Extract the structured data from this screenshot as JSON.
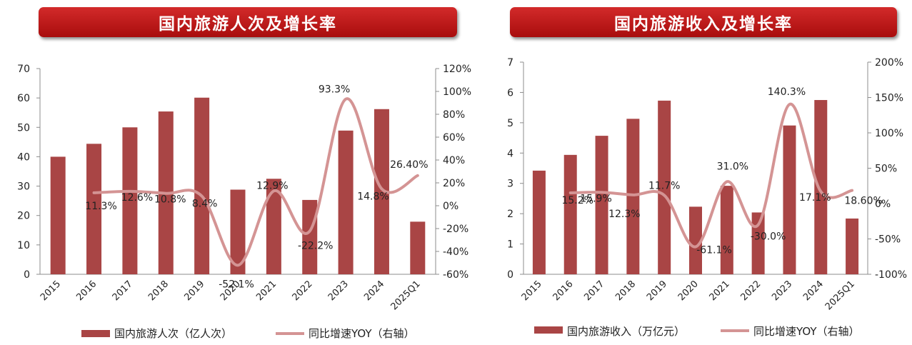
{
  "colors": {
    "bar": "#a94545",
    "line": "#d49494",
    "title_bg": "#c01b1b",
    "axis": "#8c8c8c",
    "text": "#222222"
  },
  "chart_data": [
    {
      "type": "bar",
      "title": "国内旅游人次及增长率",
      "categories": [
        "2015",
        "2016",
        "2017",
        "2018",
        "2019",
        "2020",
        "2021",
        "2022",
        "2023",
        "2024",
        "2025Q1"
      ],
      "ylim": [
        0,
        70
      ],
      "y_ticks": [
        "0",
        "10",
        "20",
        "30",
        "40",
        "50",
        "60",
        "70"
      ],
      "y2lim": [
        -60,
        120
      ],
      "y2_ticks": [
        "-60%",
        "-40%",
        "-20%",
        "0%",
        "20%",
        "40%",
        "60%",
        "80%",
        "100%",
        "120%"
      ],
      "series": [
        {
          "name": "国内旅游人次（亿人次）",
          "type": "bar",
          "axis": "left",
          "values": [
            40.0,
            44.4,
            50.0,
            55.4,
            60.1,
            28.8,
            32.5,
            25.3,
            48.9,
            56.2,
            17.9
          ]
        },
        {
          "name": "同比增速YOY（右轴）",
          "type": "line",
          "axis": "right",
          "values": [
            null,
            11.3,
            12.6,
            10.8,
            8.4,
            -52.1,
            12.9,
            -22.2,
            93.3,
            14.8,
            26.4
          ],
          "labels": [
            "",
            "11.3%",
            "12.6%",
            "10.8%",
            "8.4%",
            "-52.1%",
            "12.9%",
            "-22.2%",
            "93.3%",
            "14.8%",
            "26.40%"
          ]
        }
      ],
      "legend": "bottom"
    },
    {
      "type": "bar",
      "title": "国内旅游收入及增长率",
      "categories": [
        "2015",
        "2016",
        "2017",
        "2018",
        "2019",
        "2020",
        "2021",
        "2022",
        "2023",
        "2024",
        "2025Q1"
      ],
      "ylim": [
        0,
        7
      ],
      "y_ticks": [
        "0",
        "1",
        "2",
        "3",
        "4",
        "5",
        "6",
        "7"
      ],
      "y2lim": [
        -100,
        200
      ],
      "y2_ticks": [
        "-100%",
        "-50%",
        "0%",
        "50%",
        "100%",
        "150%",
        "200%"
      ],
      "series": [
        {
          "name": "国内旅游收入（万亿元）",
          "type": "bar",
          "axis": "left",
          "values": [
            3.42,
            3.94,
            4.57,
            5.13,
            5.73,
            2.23,
            2.92,
            2.04,
            4.91,
            5.75,
            1.84
          ]
        },
        {
          "name": "同比增速YOY（右轴）",
          "type": "line",
          "axis": "right",
          "values": [
            null,
            15.2,
            15.9,
            12.3,
            11.7,
            -61.1,
            31.0,
            -30.0,
            140.3,
            17.1,
            18.6
          ],
          "labels": [
            "",
            "15.2%",
            "15.9%",
            "12.3%",
            "11.7%",
            "-61.1%",
            "31.0%",
            "-30.0%",
            "140.3%",
            "17.1%",
            "18.60%"
          ]
        }
      ],
      "legend": "bottom"
    }
  ]
}
